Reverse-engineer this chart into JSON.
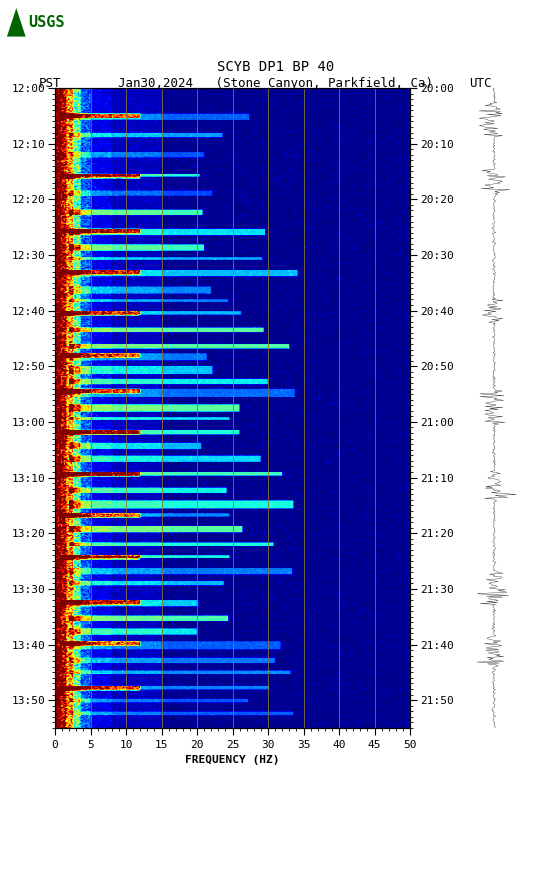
{
  "title_line1": "SCYB DP1 BP 40",
  "title_line2_pst": "PST",
  "title_line2_date": "Jan30,2024   (Stone Canyon, Parkfield, Ca)",
  "title_line2_utc": "UTC",
  "xlabel": "FREQUENCY (HZ)",
  "freq_min": 0,
  "freq_max": 50,
  "pst_ticks": [
    "12:00",
    "12:10",
    "12:20",
    "12:30",
    "12:40",
    "12:50",
    "13:00",
    "13:10",
    "13:20",
    "13:30",
    "13:40",
    "13:50"
  ],
  "utc_ticks": [
    "20:00",
    "20:10",
    "20:20",
    "20:30",
    "20:40",
    "20:50",
    "21:00",
    "21:10",
    "21:20",
    "21:30",
    "21:40",
    "21:50"
  ],
  "freq_ticks": [
    0,
    5,
    10,
    15,
    20,
    25,
    30,
    35,
    40,
    45,
    50
  ],
  "bg_color": "#ffffff",
  "spectrogram_bg": "#00008B",
  "vert_line_freqs": [
    5,
    10,
    15,
    20,
    25,
    30,
    35,
    40,
    45
  ],
  "vert_line_color": "#8B7536",
  "n_freq": 250,
  "n_time": 700,
  "seed": 42
}
